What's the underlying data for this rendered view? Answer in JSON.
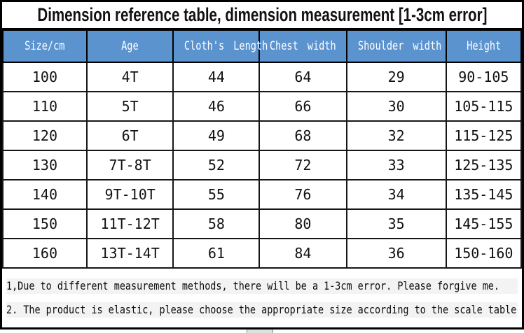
{
  "title": "Dimension reference table, dimension measurement [1-3cm error]",
  "table": {
    "columns": [
      "Size/cm",
      "Age",
      "Cloth's Length",
      "Chest width",
      "Shoulder width",
      "Height"
    ],
    "rows": [
      [
        "100",
        "4T",
        "44",
        "64",
        "29",
        "90-105"
      ],
      [
        "110",
        "5T",
        "46",
        "66",
        "30",
        "105-115"
      ],
      [
        "120",
        "6T",
        "49",
        "68",
        "32",
        "115-125"
      ],
      [
        "130",
        "7T-8T",
        "52",
        "72",
        "33",
        "125-135"
      ],
      [
        "140",
        "9T-10T",
        "55",
        "76",
        "34",
        "135-145"
      ],
      [
        "150",
        "11T-12T",
        "58",
        "80",
        "35",
        "145-155"
      ],
      [
        "160",
        "13T-14T",
        "61",
        "84",
        "36",
        "150-160"
      ]
    ]
  },
  "notes": [
    "1,Due to different measurement methods, there will be a 1-3cm error. Please forgive me.",
    "2. The product is elastic, please choose the appropriate size according to the scale table."
  ],
  "colors": {
    "header_bg": "#5b93cf",
    "header_text": "#ffffff",
    "border": "#000000",
    "body_text": "#111111"
  }
}
